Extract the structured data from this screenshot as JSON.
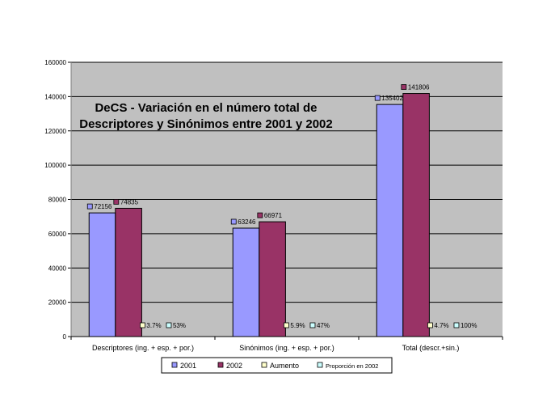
{
  "chart_data": {
    "type": "bar",
    "title_lines": [
      "DeCS - Variación en el número total de",
      "Descriptores y Sinónimos entre 2001 y 2002"
    ],
    "categories": [
      "Descriptores (ing. + esp. + por.)",
      "Sinónimos (ing. + esp. + por.)",
      "Total (descr.+sin.)"
    ],
    "series": [
      {
        "name": "2001",
        "values": [
          72156,
          63246,
          135402
        ],
        "labels": [
          "72156",
          "63246",
          "135402"
        ],
        "color": "#9999ff"
      },
      {
        "name": "2002",
        "values": [
          74835,
          66971,
          141806
        ],
        "labels": [
          "74835",
          "66971",
          "141806"
        ],
        "color": "#993366"
      },
      {
        "name": "Aumento",
        "values": [
          0,
          0,
          0
        ],
        "labels": [
          "3.7%",
          "5.9%",
          "4.7%"
        ],
        "color": "#ffffcc"
      },
      {
        "name": "Proporción en 2002",
        "values": [
          0,
          0,
          0
        ],
        "labels": [
          "53%",
          "47%",
          "100%"
        ],
        "color": "#ccffff"
      }
    ],
    "ylim": [
      0,
      160000
    ],
    "yticks": [
      "0",
      "20000",
      "40000",
      "60000",
      "80000",
      "100000",
      "120000",
      "140000",
      "160000"
    ],
    "grid": true,
    "plot_background": "#c0c0c0",
    "legend_position": "bottom"
  }
}
